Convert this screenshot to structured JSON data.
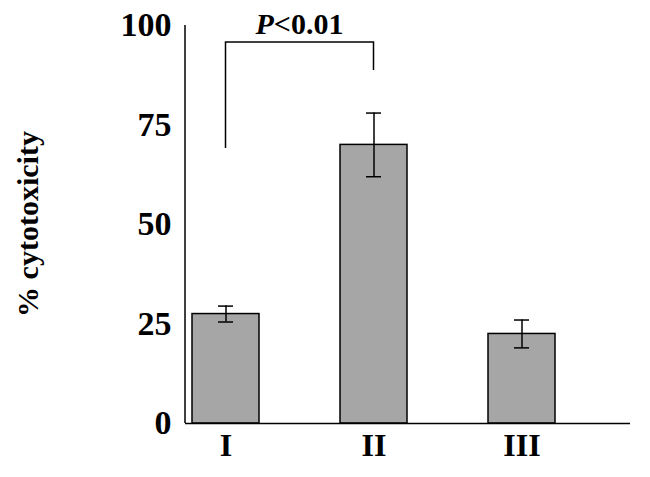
{
  "chart_data": {
    "type": "bar",
    "categories": [
      "I",
      "II",
      "III"
    ],
    "values": [
      27.5,
      70,
      22.5
    ],
    "errors": [
      2,
      8,
      3.5
    ],
    "color": "#a6a6a6",
    "ylabel": "% cytotoxicity",
    "ylim": [
      0,
      100
    ],
    "yticks": [
      0,
      25,
      50,
      75,
      100
    ],
    "grid": false,
    "annotations": [
      {
        "text": "P<0.01",
        "from": "I",
        "to": "II"
      }
    ]
  }
}
